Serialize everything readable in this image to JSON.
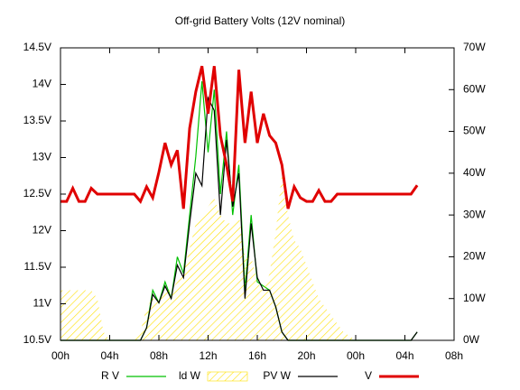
{
  "chart_data": {
    "type": "line",
    "title": "Off-grid Battery Volts (12V nominal)",
    "x": [
      0,
      0.5,
      1,
      1.5,
      2,
      2.5,
      3,
      3.5,
      4,
      4.5,
      5,
      5.5,
      6,
      6.5,
      7,
      7.5,
      8,
      8.5,
      9,
      9.5,
      10,
      10.5,
      11,
      11.5,
      12,
      12.5,
      13,
      13.5,
      14,
      14.5,
      15,
      15.5,
      16,
      16.5,
      17,
      17.5,
      18,
      18.5,
      19,
      19.5,
      20,
      20.5,
      21,
      21.5,
      22,
      22.5,
      23,
      23.5,
      24,
      24.5,
      25,
      25.5,
      26,
      26.5,
      27,
      27.5,
      28,
      28.5,
      29
    ],
    "xlim": [
      0,
      32
    ],
    "xticks": [
      {
        "value": 0,
        "label": "00h"
      },
      {
        "value": 4,
        "label": "04h"
      },
      {
        "value": 8,
        "label": "08h"
      },
      {
        "value": 12,
        "label": "12h"
      },
      {
        "value": 16,
        "label": "16h"
      },
      {
        "value": 20,
        "label": "20h"
      },
      {
        "value": 24,
        "label": "00h"
      },
      {
        "value": 28,
        "label": "04h"
      },
      {
        "value": 32,
        "label": "08h"
      }
    ],
    "ylim": [
      10.5,
      14.5
    ],
    "yticks": [
      {
        "value": 10.5,
        "label": "10.5V"
      },
      {
        "value": 11,
        "label": "11V"
      },
      {
        "value": 11.5,
        "label": "11.5V"
      },
      {
        "value": 12,
        "label": "12V"
      },
      {
        "value": 12.5,
        "label": "12.5V"
      },
      {
        "value": 13,
        "label": "13V"
      },
      {
        "value": 13.5,
        "label": "13.5V"
      },
      {
        "value": 14,
        "label": "14V"
      },
      {
        "value": 14.5,
        "label": "14.5V"
      }
    ],
    "y2lim": [
      0,
      70
    ],
    "y2ticks": [
      {
        "value": 0,
        "label": "0W"
      },
      {
        "value": 10,
        "label": "10W"
      },
      {
        "value": 20,
        "label": "20W"
      },
      {
        "value": 30,
        "label": "30W"
      },
      {
        "value": 40,
        "label": "40W"
      },
      {
        "value": 50,
        "label": "50W"
      },
      {
        "value": 60,
        "label": "60W"
      },
      {
        "value": 70,
        "label": "70W"
      }
    ],
    "series": [
      {
        "name": "R V",
        "color": "#00c000",
        "axis": "y2",
        "style": "line",
        "values": [
          0,
          0,
          0,
          0,
          0,
          0,
          0,
          0,
          0,
          0,
          0,
          0,
          0,
          0,
          3,
          12,
          9,
          14,
          10,
          20,
          16,
          30,
          44,
          62,
          45,
          60,
          35,
          50,
          30,
          42,
          12,
          30,
          14,
          13,
          12,
          8,
          2,
          0,
          0,
          0,
          0,
          0,
          0,
          0,
          0,
          0,
          0,
          0,
          0,
          0,
          0,
          0,
          0,
          0,
          0,
          0,
          0,
          0,
          2
        ]
      },
      {
        "name": "ld W",
        "color": "#ffe000",
        "axis": "y2",
        "style": "hatch",
        "values": [
          12,
          12,
          12,
          12,
          12,
          12,
          10,
          2,
          0,
          0,
          0,
          0,
          0,
          2,
          8,
          10,
          10,
          12,
          12,
          14,
          16,
          22,
          28,
          30,
          32,
          34,
          30,
          28,
          28,
          30,
          20,
          20,
          14,
          12,
          16,
          26,
          40,
          30,
          24,
          22,
          18,
          14,
          10,
          8,
          6,
          4,
          2,
          1,
          0,
          0,
          0,
          0,
          0,
          0,
          0,
          0,
          0,
          0,
          0
        ]
      },
      {
        "name": "PV W",
        "color": "#000000",
        "axis": "y2",
        "style": "line",
        "values": [
          0,
          0,
          0,
          0,
          0,
          0,
          0,
          0,
          0,
          0,
          0,
          0,
          0,
          0,
          3,
          11,
          9,
          13,
          10,
          18,
          15,
          28,
          40,
          37,
          58,
          55,
          30,
          48,
          32,
          40,
          10,
          28,
          15,
          12,
          12,
          8,
          2,
          0,
          0,
          0,
          0,
          0,
          0,
          0,
          0,
          0,
          0,
          0,
          0,
          0,
          0,
          0,
          0,
          0,
          0,
          0,
          0,
          0,
          2
        ]
      },
      {
        "name": "V",
        "color": "#e00000",
        "style": "line",
        "values": [
          12.4,
          12.4,
          12.58,
          12.4,
          12.4,
          12.58,
          12.5,
          12.5,
          12.5,
          12.5,
          12.5,
          12.5,
          12.5,
          12.4,
          12.6,
          12.45,
          12.8,
          13.2,
          12.9,
          13.1,
          12.3,
          13.4,
          13.9,
          14.25,
          13.6,
          14.25,
          13.3,
          12.9,
          12.4,
          14.2,
          13.2,
          13.9,
          13.2,
          13.6,
          13.3,
          13.2,
          12.9,
          12.3,
          12.6,
          12.45,
          12.4,
          12.4,
          12.55,
          12.4,
          12.4,
          12.5,
          12.5,
          12.5,
          12.5,
          12.5,
          12.5,
          12.5,
          12.5,
          12.5,
          12.5,
          12.5,
          12.5,
          12.5,
          12.62
        ]
      }
    ]
  }
}
